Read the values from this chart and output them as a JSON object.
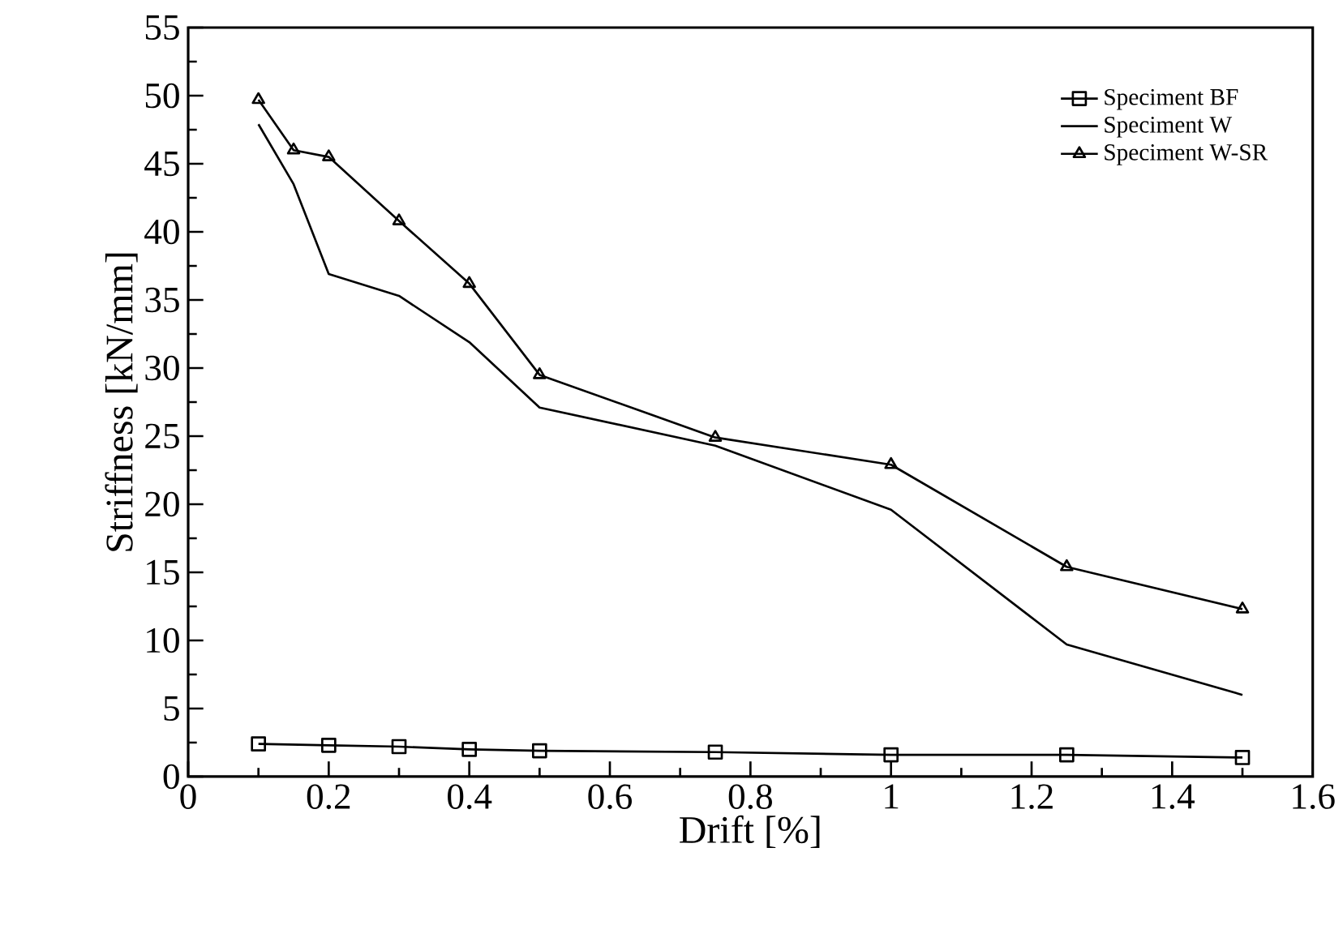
{
  "chart_data": {
    "type": "line",
    "xlabel": "Drift [%]",
    "ylabel": "Striffness [kN/mm]",
    "xlim": [
      0,
      1.6
    ],
    "ylim": [
      0,
      55
    ],
    "xticks": [
      0,
      0.2,
      0.4,
      0.6,
      0.8,
      1,
      1.2,
      1.4,
      1.6
    ],
    "yticks": [
      0,
      5,
      10,
      15,
      20,
      25,
      30,
      35,
      40,
      45,
      50,
      55
    ],
    "legend": "top right",
    "grid": false,
    "series": [
      {
        "name": "Speciment BF",
        "color": "#000000",
        "marker": "square",
        "x": [
          0.1,
          0.2,
          0.3,
          0.4,
          0.5,
          0.75,
          1,
          1.25,
          1.5
        ],
        "values": [
          2.4,
          2.3,
          2.2,
          2.0,
          1.9,
          1.8,
          1.6,
          1.6,
          1.4
        ]
      },
      {
        "name": "Speciment W",
        "color": "#000000",
        "marker": "none",
        "x": [
          0.1,
          0.15,
          0.2,
          0.3,
          0.4,
          0.5,
          0.75,
          1,
          1.25,
          1.5
        ],
        "values": [
          47.9,
          43.5,
          36.9,
          35.3,
          31.9,
          27.1,
          24.3,
          19.6,
          9.7,
          6.0
        ]
      },
      {
        "name": "Speciment W-SR",
        "color": "#000000",
        "marker": "triangle",
        "x": [
          0.1,
          0.15,
          0.2,
          0.3,
          0.4,
          0.5,
          0.75,
          1,
          1.25,
          1.5
        ],
        "values": [
          49.7,
          46.0,
          45.5,
          40.8,
          36.2,
          29.5,
          24.9,
          22.9,
          15.4,
          12.3
        ]
      }
    ]
  }
}
